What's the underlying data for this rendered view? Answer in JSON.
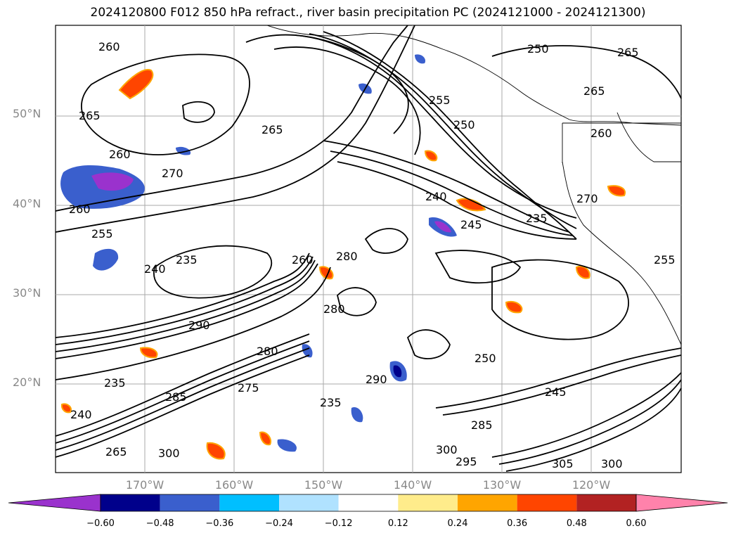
{
  "title": "2024120800 F012 850 hPa refract., river basin precipitation PC (2024121000 - 2024121300)",
  "lat_labels": [
    "50°N",
    "40°N",
    "30°N",
    "20°N"
  ],
  "lon_labels": [
    "170°W",
    "160°W",
    "150°W",
    "140°W",
    "130°W",
    "120°W"
  ],
  "contour_labels": [
    "260",
    "265",
    "260",
    "270",
    "260",
    "255",
    "250",
    "235",
    "240",
    "235",
    "265",
    "255",
    "250",
    "240",
    "245",
    "235",
    "265",
    "265",
    "260",
    "270",
    "280",
    "280",
    "290",
    "285",
    "260",
    "290",
    "250",
    "245",
    "295",
    "300",
    "305",
    "300",
    "235",
    "240",
    "255",
    "280",
    "265",
    "300",
    "285",
    "275"
  ],
  "colorbar": {
    "colors": [
      "#9a32cd",
      "#00008b",
      "#3a5fcd",
      "#00bfff",
      "#b0e2ff",
      "#ffffff",
      "#ffec8b",
      "#ffa500",
      "#ff4500",
      "#b22222",
      "#ff82ab"
    ],
    "tick_labels": [
      "−0.60",
      "−0.48",
      "−0.36",
      "−0.24",
      "−0.12",
      "0.12",
      "0.24",
      "0.36",
      "0.48",
      "0.60"
    ]
  }
}
